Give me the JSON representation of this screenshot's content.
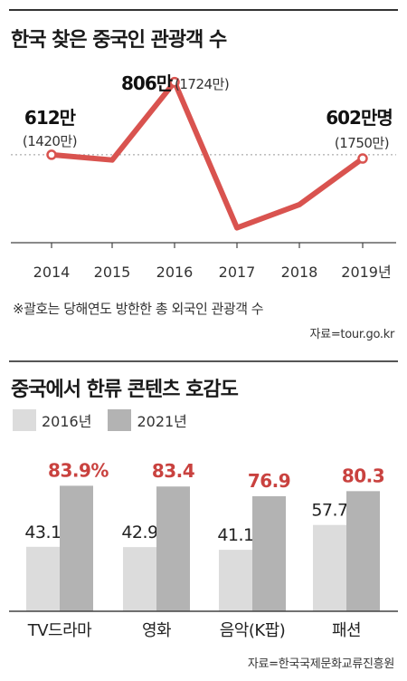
{
  "chart1": {
    "title": "한국 찾은 중국인 관광객 수",
    "annotations": [
      {
        "main": "612만",
        "sub": "(1420만)"
      },
      {
        "main": "806만",
        "sub": "(1724만)"
      },
      {
        "main": "602만명",
        "sub": "(1750만)"
      }
    ],
    "note": "※괄호는 당해연도 방한한 총 외국인 관광객 수",
    "source": "자료=tour.go.kr"
  },
  "chart2": {
    "title": "중국에서 한류 콘텐츠 호감도",
    "source": "자료=한국국제문화교류진흥원"
  },
  "colors": {
    "line": "#d9534f",
    "highlight": "#c9423f",
    "bar2016": "#dcdcdc",
    "bar2021": "#b3b3b3",
    "axis": "#444444",
    "refline": "#999999"
  },
  "chart_data": [
    {
      "type": "line",
      "title": "한국 찾은 중국인 관광객 수",
      "x": [
        "2014",
        "2015",
        "2016",
        "2017",
        "2018",
        "2019년"
      ],
      "series": [
        {
          "values": [
            612,
            598,
            806,
            417,
            479,
            602
          ]
        }
      ],
      "ylim": [
        300,
        880
      ],
      "grid": false,
      "reference_line": 612
    },
    {
      "type": "bar",
      "title": "중국에서 한류 콘텐츠 호감도",
      "categories": [
        "TV드라마",
        "영화",
        "음악(K팝)",
        "패션"
      ],
      "series": [
        {
          "name": "2016년",
          "values": [
            43.1,
            42.9,
            41.1,
            57.7
          ],
          "labels": [
            "43.1",
            "42.9",
            "41.1",
            "57.7"
          ]
        },
        {
          "name": "2021년",
          "values": [
            83.9,
            83.4,
            76.9,
            80.3
          ],
          "labels": [
            "83.9%",
            "83.4",
            "76.9",
            "80.3"
          ]
        }
      ],
      "ylim": [
        0,
        100
      ],
      "legend_position": "top-left"
    }
  ]
}
